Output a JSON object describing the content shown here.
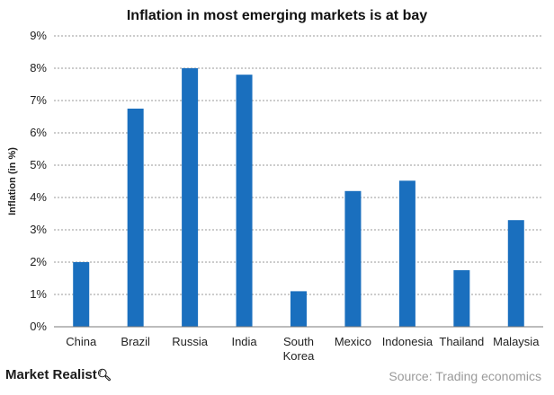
{
  "chart_data": {
    "type": "bar",
    "title": "Inflation in most emerging markets  is  at bay",
    "ylabel": "Inflation (in %)",
    "xlabel": "",
    "categories": [
      "China",
      "Brazil",
      "Russia",
      "India",
      "South Korea",
      "Mexico",
      "Indonesia",
      "Thailand",
      "Malaysia"
    ],
    "category_lines": [
      [
        "China"
      ],
      [
        "Brazil"
      ],
      [
        "Russia"
      ],
      [
        "India"
      ],
      [
        "South",
        "Korea"
      ],
      [
        "Mexico"
      ],
      [
        "Indonesia"
      ],
      [
        "Thailand"
      ],
      [
        "Malaysia"
      ]
    ],
    "values": [
      2.0,
      6.75,
      8.0,
      7.8,
      1.1,
      4.2,
      4.52,
      1.75,
      3.3
    ],
    "ylim": [
      0,
      9
    ],
    "yticks": [
      0,
      1,
      2,
      3,
      4,
      5,
      6,
      7,
      8,
      9
    ],
    "ytick_labels": [
      "0%",
      "1%",
      "2%",
      "3%",
      "4%",
      "5%",
      "6%",
      "7%",
      "8%",
      "9%"
    ],
    "grid": true,
    "bar_color": "#1a6fbe"
  },
  "footer": {
    "brand": "Market Realist",
    "brand_icon": "magnifier-icon",
    "source": "Source: Trading economics"
  }
}
